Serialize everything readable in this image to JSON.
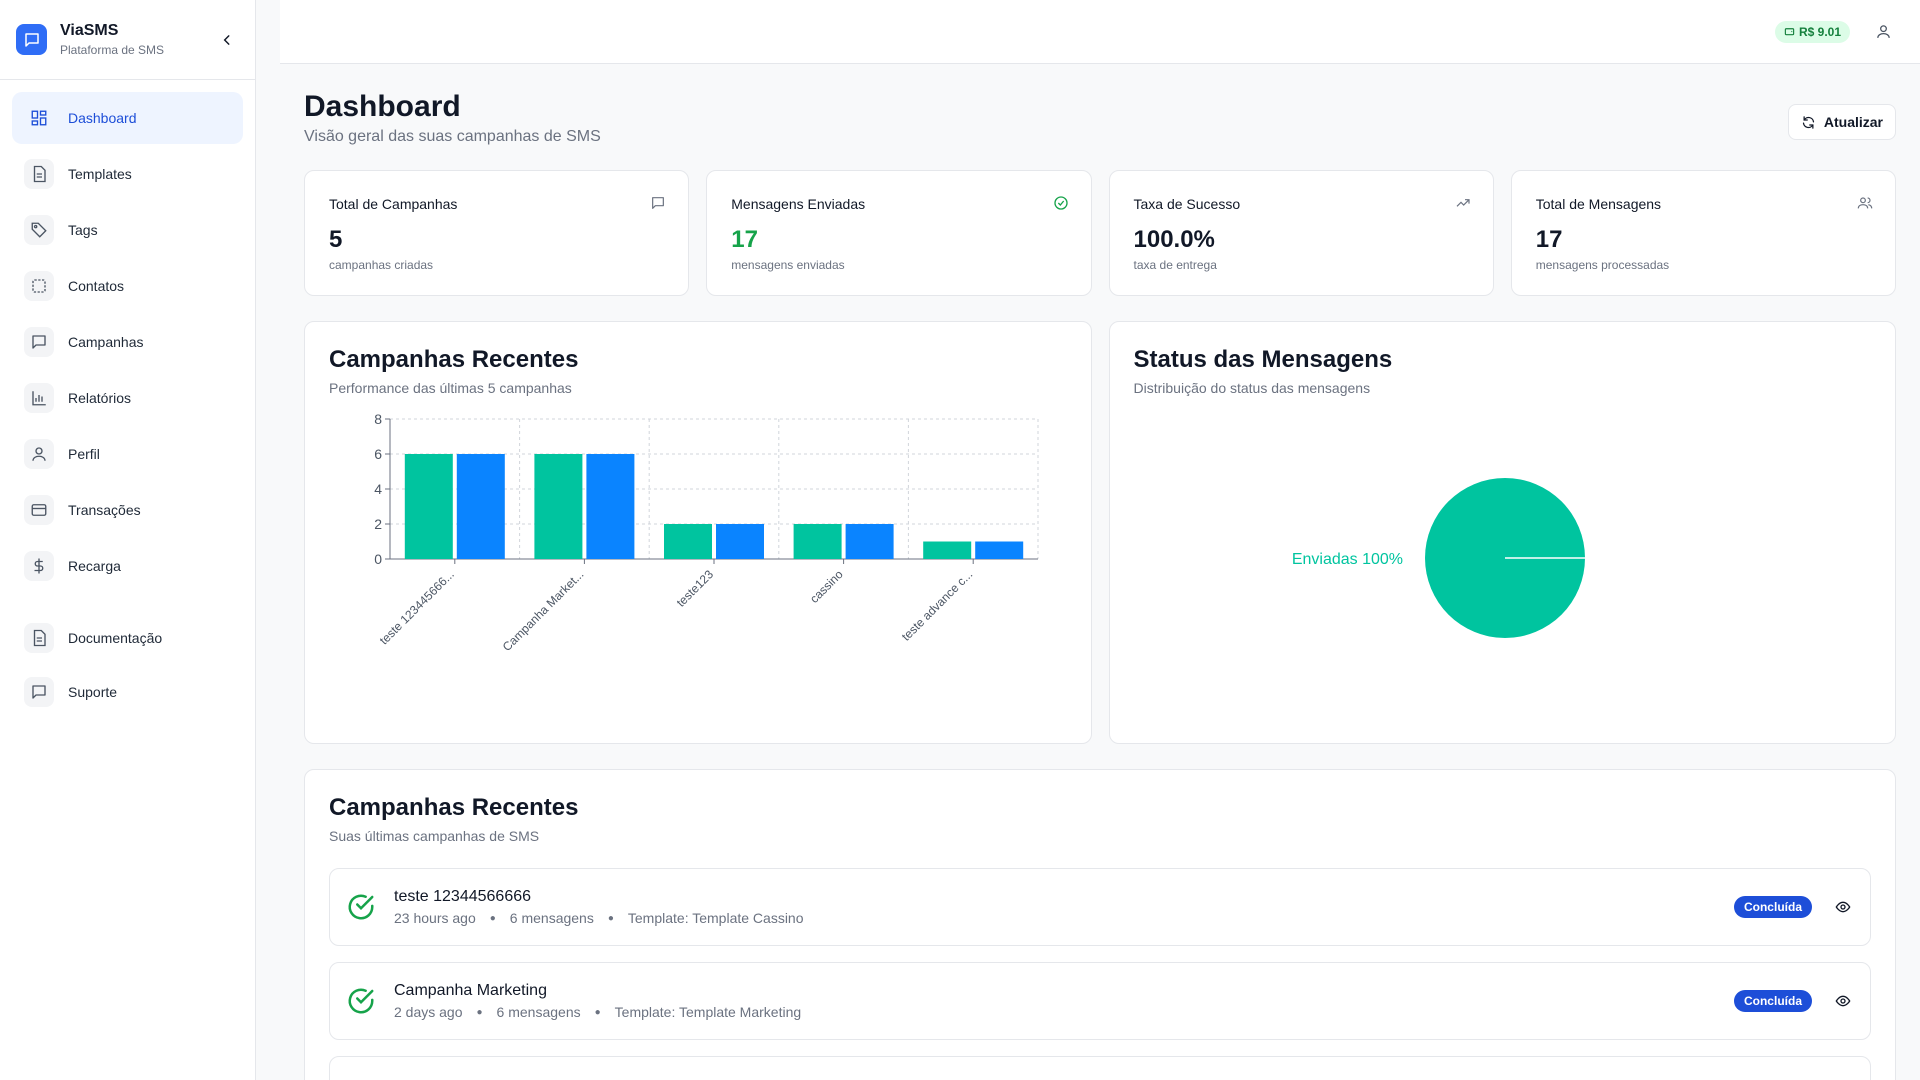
{
  "brand": {
    "name": "ViaSMS",
    "subtitle": "Plataforma de SMS"
  },
  "sidebar": {
    "items": [
      {
        "label": "Dashboard",
        "icon": "dashboard-icon",
        "active": true
      },
      {
        "label": "Templates",
        "icon": "file-icon"
      },
      {
        "label": "Tags",
        "icon": "tag-icon"
      },
      {
        "label": "Contatos",
        "icon": "contacts-icon"
      },
      {
        "label": "Campanhas",
        "icon": "message-icon"
      },
      {
        "label": "Relatórios",
        "icon": "bar-chart-icon"
      },
      {
        "label": "Perfil",
        "icon": "user-icon"
      },
      {
        "label": "Transações",
        "icon": "credit-card-icon"
      },
      {
        "label": "Recarga",
        "icon": "dollar-icon"
      }
    ],
    "secondary": [
      {
        "label": "Documentação",
        "icon": "file-icon"
      },
      {
        "label": "Suporte",
        "icon": "message-icon"
      }
    ]
  },
  "topbar": {
    "balance": "R$ 9.01"
  },
  "page": {
    "title": "Dashboard",
    "subtitle": "Visão geral das suas campanhas de SMS",
    "refresh_label": "Atualizar"
  },
  "stats": [
    {
      "label": "Total de Campanhas",
      "value": "5",
      "desc": "campanhas criadas",
      "icon": "message-icon"
    },
    {
      "label": "Mensagens Enviadas",
      "value": "17",
      "desc": "mensagens enviadas",
      "icon": "check-circle-icon"
    },
    {
      "label": "Taxa de Sucesso",
      "value": "100.0%",
      "desc": "taxa de entrega",
      "icon": "trending-up-icon"
    },
    {
      "label": "Total de Mensagens",
      "value": "17",
      "desc": "mensagens processadas",
      "icon": "users-icon"
    }
  ],
  "bar_panel": {
    "title": "Campanhas Recentes",
    "subtitle": "Performance das últimas 5 campanhas"
  },
  "pie_panel": {
    "title": "Status das Mensagens",
    "subtitle": "Distribuição do status das mensagens"
  },
  "list_panel": {
    "title": "Campanhas Recentes",
    "subtitle": "Suas últimas campanhas de SMS"
  },
  "campaigns": [
    {
      "name": "teste 12344566666",
      "time": "23 hours ago",
      "messages": "6 mensagens",
      "template": "Template: Template Cassino",
      "status": "Concluída"
    },
    {
      "name": "Campanha Marketing",
      "time": "2 days ago",
      "messages": "6 mensagens",
      "template": "Template: Template Marketing",
      "status": "Concluída"
    }
  ],
  "colors": {
    "accent": "#2f6df6",
    "series_a": "#00c49f",
    "series_b": "#0a84ff",
    "badge": "#1d4ed8"
  },
  "chart_data": [
    {
      "type": "bar",
      "categories": [
        "teste 123445666...",
        "Campanha Market...",
        "teste123",
        "cassino",
        "teste advance c..."
      ],
      "series": [
        {
          "values": [
            6,
            6,
            2,
            2,
            1
          ]
        },
        {
          "values": [
            6,
            6,
            2,
            2,
            1
          ]
        }
      ],
      "ylim": [
        0,
        8
      ],
      "yticks": [
        0,
        2,
        4,
        6,
        8
      ],
      "grid": true
    },
    {
      "type": "pie",
      "slices": [
        {
          "label": "Enviadas 100%",
          "value": 100
        }
      ]
    }
  ]
}
